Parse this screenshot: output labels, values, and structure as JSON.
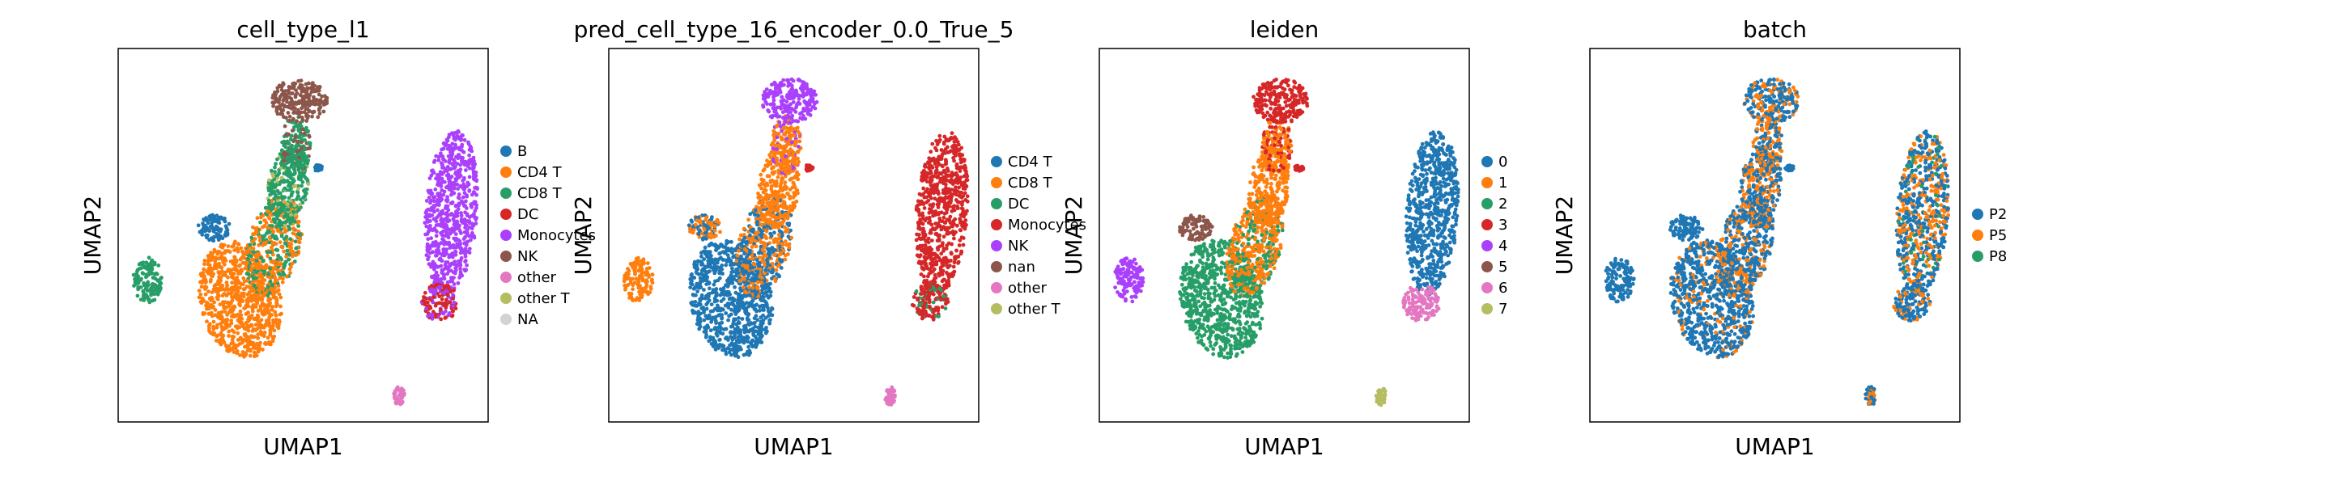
{
  "colors": {
    "c0": "#1f77b4",
    "c1": "#ff7f0e",
    "c2": "#279e68",
    "c3": "#d62728",
    "c4": "#aa40fc",
    "c5": "#8c564b",
    "c6": "#e377c2",
    "c7": "#b5bd61",
    "na": "#d3d3d3"
  },
  "chart_data": [
    {
      "type": "scatter",
      "title": "cell_type_l1",
      "xlabel": "UMAP1",
      "ylabel": "UMAP2",
      "grid": false,
      "ticks": false,
      "legend": {
        "placement": "right",
        "entries": [
          {
            "label": "B",
            "color": "#1f77b4"
          },
          {
            "label": "CD4 T",
            "color": "#ff7f0e"
          },
          {
            "label": "CD8 T",
            "color": "#279e68"
          },
          {
            "label": "DC",
            "color": "#d62728"
          },
          {
            "label": "Monocytes",
            "color": "#aa40fc"
          },
          {
            "label": "NK",
            "color": "#8c564b"
          },
          {
            "label": "other",
            "color": "#e377c2"
          },
          {
            "label": "other T",
            "color": "#b5bd61"
          },
          {
            "label": "NA",
            "color": "#d3d3d3"
          }
        ]
      }
    },
    {
      "type": "scatter",
      "title": "pred_cell_type_16_encoder_0.0_True_5",
      "xlabel": "UMAP1",
      "ylabel": "UMAP2",
      "grid": false,
      "ticks": false,
      "legend": {
        "placement": "right",
        "entries": [
          {
            "label": "CD4 T",
            "color": "#1f77b4"
          },
          {
            "label": "CD8 T",
            "color": "#ff7f0e"
          },
          {
            "label": "DC",
            "color": "#279e68"
          },
          {
            "label": "Monocytes",
            "color": "#d62728"
          },
          {
            "label": "NK",
            "color": "#aa40fc"
          },
          {
            "label": "nan",
            "color": "#8c564b"
          },
          {
            "label": "other",
            "color": "#e377c2"
          },
          {
            "label": "other T",
            "color": "#b5bd61"
          }
        ]
      }
    },
    {
      "type": "scatter",
      "title": "leiden",
      "xlabel": "UMAP1",
      "ylabel": "UMAP2",
      "grid": false,
      "ticks": false,
      "legend": {
        "placement": "right",
        "entries": [
          {
            "label": "0",
            "color": "#1f77b4"
          },
          {
            "label": "1",
            "color": "#ff7f0e"
          },
          {
            "label": "2",
            "color": "#279e68"
          },
          {
            "label": "3",
            "color": "#d62728"
          },
          {
            "label": "4",
            "color": "#aa40fc"
          },
          {
            "label": "5",
            "color": "#8c564b"
          },
          {
            "label": "6",
            "color": "#e377c2"
          },
          {
            "label": "7",
            "color": "#b5bd61"
          }
        ]
      }
    },
    {
      "type": "scatter",
      "title": "batch",
      "xlabel": "UMAP1",
      "ylabel": "UMAP2",
      "grid": false,
      "ticks": false,
      "legend": {
        "placement": "right",
        "entries": [
          {
            "label": "P2",
            "color": "#1f77b4"
          },
          {
            "label": "P5",
            "color": "#ff7f0e"
          },
          {
            "label": "P8",
            "color": "#279e68"
          }
        ]
      }
    }
  ]
}
